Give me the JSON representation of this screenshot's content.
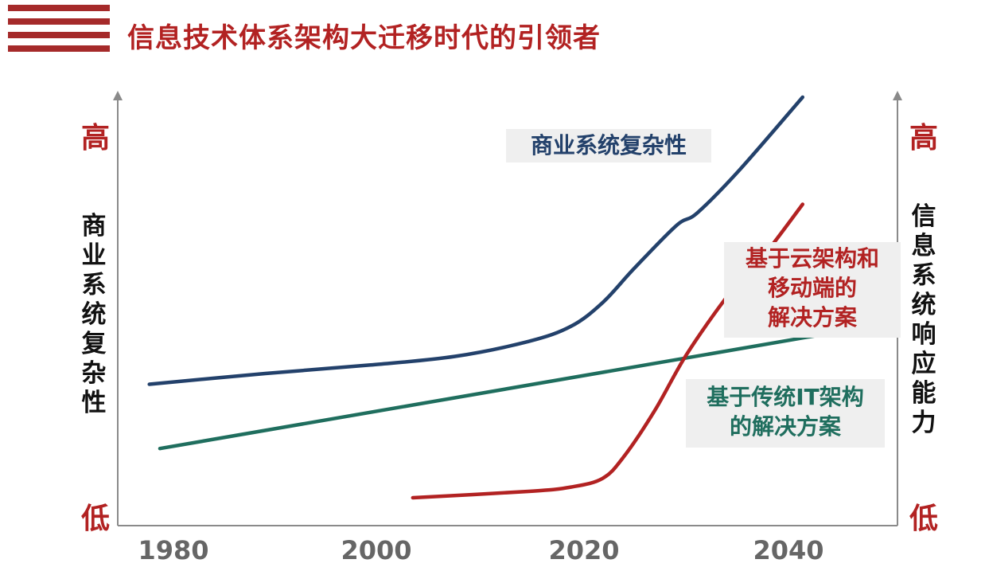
{
  "header": {
    "title": "信息技术体系架构大迁移时代的引领者"
  },
  "chart_data": {
    "type": "line",
    "title": "信息技术体系架构大迁移时代的引领者",
    "ylabel_left": "商业系统复杂性",
    "ylabel_right": "信息系统响应能力",
    "y_left_top": "高",
    "y_left_bottom": "低",
    "y_right_top": "高",
    "y_right_bottom": "低",
    "x_ticks": [
      "1980",
      "2000",
      "2020",
      "2040"
    ],
    "xlim": [
      1976,
      2050
    ],
    "ylim": [
      0,
      100
    ],
    "grid": false,
    "series": [
      {
        "name": "商业系统复杂性",
        "color": "#23416b",
        "x": [
          1979,
          1990,
          2000,
          2008,
          2015,
          2019,
          2022,
          2025,
          2029,
          2031,
          2035,
          2041
        ],
        "y": [
          33,
          35.5,
          37.5,
          39.5,
          43,
          46.5,
          52,
          60,
          70,
          73,
          83,
          100
        ]
      },
      {
        "name": "基于传统IT架构的解决方案",
        "color": "#1f6e5e",
        "x": [
          1980,
          2045
        ],
        "y": [
          18,
          45.5
        ]
      },
      {
        "name": "基于云架构和移动端的解决方案",
        "color": "#b22222",
        "x": [
          2004,
          2015,
          2019,
          2022,
          2024,
          2027,
          2030,
          2034,
          2037,
          2041
        ],
        "y": [
          6.5,
          8,
          9,
          11,
          16,
          27,
          40,
          54,
          62,
          75
        ]
      }
    ],
    "labels": {
      "blue": "商业系统复杂性",
      "red_lines": [
        "基于云架构和",
        "移动端的",
        "解决方案"
      ],
      "green_lines": [
        "基于传统IT架构",
        "的解决方案"
      ]
    }
  }
}
